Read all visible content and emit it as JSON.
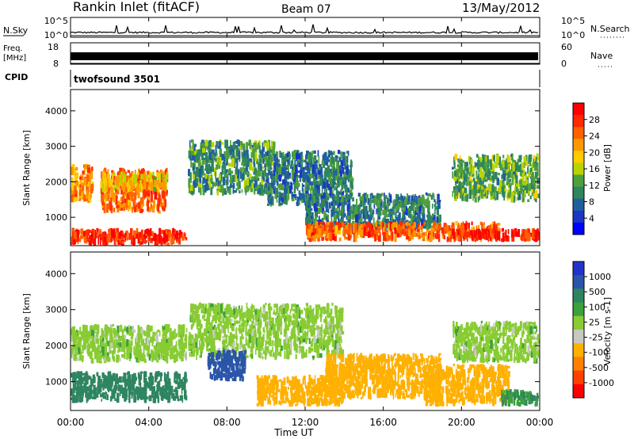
{
  "header": {
    "station": "Rankin Inlet (fitACF)",
    "beam": "Beam 07",
    "date": "13/May/2012"
  },
  "nsky_panel": {
    "left_label": "N.Sky",
    "left_ticks": [
      "10^5",
      "10^0"
    ],
    "right_label": "N.Search",
    "right_ticks": [
      "10^5",
      "10^0"
    ]
  },
  "freq_panel": {
    "left_label_1": "Freq.",
    "left_label_2": "[MHz]",
    "left_ticks": [
      "18",
      "8"
    ],
    "right_label": "Nave",
    "right_ticks": [
      "60",
      "0"
    ]
  },
  "cpid_panel": {
    "label": "CPID",
    "value": "twofsound 3501"
  },
  "x_axis": {
    "label": "Time UT",
    "ticks": [
      "00:00",
      "04:00",
      "08:00",
      "12:00",
      "16:00",
      "20:00",
      "00:00"
    ]
  },
  "power_colorbar": {
    "label": "Power [dB]",
    "ticks": [
      "28",
      "24",
      "20",
      "16",
      "12",
      "8",
      "4"
    ],
    "colors": [
      "#ff0000",
      "#ff2a00",
      "#ff6000",
      "#ff9800",
      "#ffcc00",
      "#b8d400",
      "#4fa03a",
      "#2e8560",
      "#1f5f9e",
      "#1a36c4",
      "#0000ff"
    ]
  },
  "velocity_colorbar": {
    "label": "Velocity [m s-1]",
    "ticks": [
      "1000",
      "500",
      "100",
      "25",
      "-25",
      "-100",
      "-500",
      "-1000"
    ],
    "colors": [
      "#2233cc",
      "#2a55a8",
      "#2e8560",
      "#3ca03c",
      "#88cc33",
      "#c8c8c0",
      "#ffb000",
      "#ff8000",
      "#ff4000",
      "#ff0000"
    ]
  },
  "chart_data": [
    {
      "type": "heatmap",
      "name": "power",
      "xlabel": "Time UT",
      "ylabel": "Slant Range [km]",
      "xlim": [
        0,
        24
      ],
      "ylim": [
        200,
        4600
      ],
      "yticks": [
        1000,
        2000,
        3000,
        4000
      ],
      "y_tick_labels": [
        "1000",
        "2000",
        "3000",
        "4000"
      ],
      "colorbar_range": [
        0,
        30
      ],
      "regions": [
        {
          "x": [
            0.0,
            6.0
          ],
          "y": [
            200,
            700
          ],
          "value": 28
        },
        {
          "x": [
            0.0,
            1.2
          ],
          "y": [
            1400,
            2500
          ],
          "value": 22
        },
        {
          "x": [
            1.5,
            5.0
          ],
          "y": [
            1100,
            2400
          ],
          "value": 24
        },
        {
          "x": [
            1.5,
            5.0
          ],
          "y": [
            1700,
            2300
          ],
          "value": 18
        },
        {
          "x": [
            6.0,
            10.5
          ],
          "y": [
            1600,
            3200
          ],
          "value": 10
        },
        {
          "x": [
            10.0,
            14.5
          ],
          "y": [
            1300,
            2900
          ],
          "value": 8
        },
        {
          "x": [
            12.0,
            19.0
          ],
          "y": [
            600,
            1700
          ],
          "value": 8
        },
        {
          "x": [
            12.0,
            22.0
          ],
          "y": [
            300,
            900
          ],
          "value": 24
        },
        {
          "x": [
            19.5,
            24.0
          ],
          "y": [
            1400,
            2800
          ],
          "value": 12
        },
        {
          "x": [
            19.5,
            24.0
          ],
          "y": [
            300,
            700
          ],
          "value": 28
        }
      ]
    },
    {
      "type": "heatmap",
      "name": "velocity",
      "xlabel": "Time UT",
      "ylabel": "Slant Range [km]",
      "xlim": [
        0,
        24
      ],
      "ylim": [
        200,
        4600
      ],
      "yticks": [
        1000,
        2000,
        3000,
        4000
      ],
      "y_tick_labels": [
        "1000",
        "2000",
        "3000",
        "4000"
      ],
      "colorbar_ticks": [
        1000,
        500,
        100,
        25,
        -25,
        -100,
        -500,
        -1000
      ],
      "regions": [
        {
          "x": [
            0.0,
            6.0
          ],
          "y": [
            1500,
            2600
          ],
          "value": 0
        },
        {
          "x": [
            0.0,
            6.0
          ],
          "y": [
            400,
            1300
          ],
          "value": 150
        },
        {
          "x": [
            6.0,
            14.0
          ],
          "y": [
            1600,
            3200
          ],
          "value": 0
        },
        {
          "x": [
            7.0,
            9.0
          ],
          "y": [
            1000,
            1900
          ],
          "value": 600
        },
        {
          "x": [
            9.5,
            14.0
          ],
          "y": [
            300,
            1200
          ],
          "value": -200
        },
        {
          "x": [
            13.0,
            19.0
          ],
          "y": [
            500,
            1800
          ],
          "value": -150
        },
        {
          "x": [
            18.0,
            22.5
          ],
          "y": [
            300,
            1500
          ],
          "value": -300
        },
        {
          "x": [
            19.5,
            24.0
          ],
          "y": [
            1500,
            2700
          ],
          "value": 0
        },
        {
          "x": [
            22.0,
            24.0
          ],
          "y": [
            300,
            800
          ],
          "value": 100
        }
      ]
    }
  ]
}
